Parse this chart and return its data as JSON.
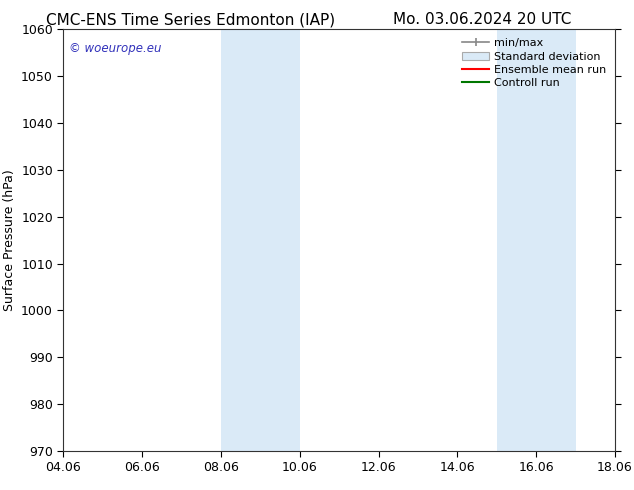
{
  "title_left": "CMC-ENS Time Series Edmonton (IAP)",
  "title_right": "Mo. 03.06.2024 20 UTC",
  "ylabel": "Surface Pressure (hPa)",
  "ylim": [
    970,
    1060
  ],
  "yticks": [
    970,
    980,
    990,
    1000,
    1010,
    1020,
    1030,
    1040,
    1050,
    1060
  ],
  "xtick_labels": [
    "04.06",
    "06.06",
    "08.06",
    "10.06",
    "12.06",
    "14.06",
    "16.06",
    "18.06"
  ],
  "xtick_positions": [
    0,
    2,
    4,
    6,
    8,
    10,
    12,
    14
  ],
  "xlim": [
    0,
    14
  ],
  "shaded_regions": [
    {
      "x_start": 4,
      "x_end": 6
    },
    {
      "x_start": 11,
      "x_end": 13
    }
  ],
  "shaded_color": "#daeaf7",
  "background_color": "#ffffff",
  "watermark_text": "© woeurope.eu",
  "watermark_color": "#3333bb",
  "legend_items": [
    {
      "label": "min/max",
      "type": "errorbar"
    },
    {
      "label": "Standard deviation",
      "type": "patch"
    },
    {
      "label": "Ensemble mean run",
      "type": "line",
      "color": "#ff0000"
    },
    {
      "label": "Controll run",
      "type": "line",
      "color": "#007700"
    }
  ],
  "title_fontsize": 11,
  "axis_fontsize": 9,
  "legend_fontsize": 8,
  "ylabel_fontsize": 9
}
